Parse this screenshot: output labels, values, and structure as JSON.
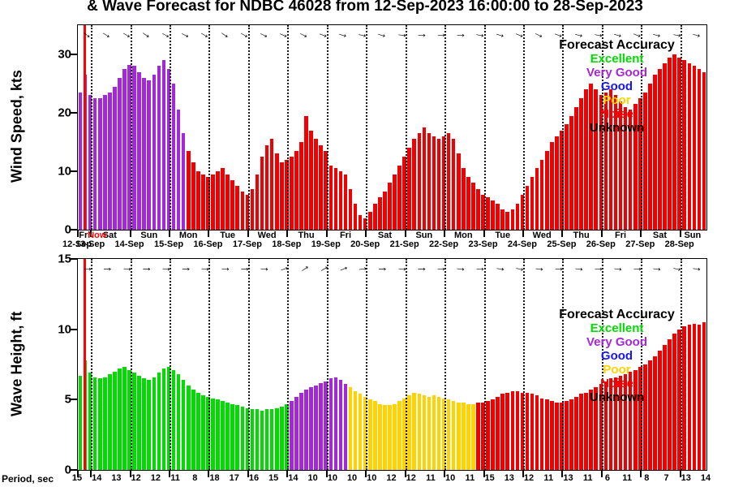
{
  "title": "& Wave Forecast for NDBC 46028 from 12-Sep-2023 16:00:00 to 28-Sep-2023",
  "now_label": "Now",
  "legend": {
    "title": "Forecast Accuracy",
    "items": [
      {
        "label": "Excellent",
        "color": "#00DC00"
      },
      {
        "label": "Very Good",
        "color": "#A428D8"
      },
      {
        "label": "Good",
        "color": "#1414FF"
      },
      {
        "label": "Poor",
        "color": "#FFD200"
      },
      {
        "label": "Noise",
        "color": "#F00000"
      },
      {
        "label": "Unknown",
        "color": "#000000"
      }
    ]
  },
  "xaxis": {
    "dates": [
      "12-Sep",
      "13-Sep",
      "14-Sep",
      "15-Sep",
      "16-Sep",
      "17-Sep",
      "18-Sep",
      "19-Sep",
      "20-Sep",
      "21-Sep",
      "22-Sep",
      "23-Sep",
      "24-Sep",
      "25-Sep",
      "26-Sep",
      "27-Sep",
      "28-Sep"
    ],
    "days": [
      "Fri",
      "Sat",
      "Sun",
      "Mon",
      "Tue",
      "Wed",
      "Thu",
      "Fri",
      "Sat",
      "Sun",
      "Mon",
      "Tue",
      "Wed",
      "Thu",
      "Fri",
      "Sat",
      "Sun"
    ]
  },
  "period": {
    "label": "Period, sec",
    "values": [
      15,
      14,
      13,
      12,
      12,
      11,
      8,
      18,
      17,
      16,
      15,
      14,
      10,
      10,
      10,
      10,
      12,
      12,
      11,
      10,
      11,
      15,
      13,
      12,
      11,
      13,
      11,
      6,
      11,
      8,
      7,
      13,
      14
    ]
  },
  "chart_data": [
    {
      "type": "bar",
      "title": "Wind Speed Forecast",
      "ylabel": "Wind Speed, kts",
      "ylim": [
        0,
        35
      ],
      "yticks": [
        0,
        10,
        20,
        30
      ],
      "x_span_hours": 384,
      "bar_hours": 3,
      "grid": "vertical-dotted-daily",
      "values": [
        23.5,
        26.5,
        23.0,
        22.5,
        22.5,
        23.0,
        23.5,
        24.5,
        26.0,
        27.5,
        28.2,
        28.0,
        27.0,
        26.0,
        25.5,
        26.5,
        28.0,
        29.0,
        27.5,
        25.0,
        20.5,
        16.5,
        13.5,
        11.5,
        10.0,
        9.5,
        9.0,
        9.5,
        10.0,
        10.5,
        9.5,
        8.5,
        7.5,
        6.5,
        6.0,
        7.0,
        9.5,
        12.5,
        14.5,
        15.5,
        13.0,
        11.5,
        12.0,
        12.5,
        13.5,
        15.0,
        19.5,
        17.0,
        15.5,
        14.5,
        13.5,
        11.0,
        10.5,
        10.0,
        9.5,
        7.0,
        4.5,
        2.5,
        2.0,
        3.0,
        4.5,
        5.5,
        6.5,
        8.0,
        9.5,
        11.0,
        12.5,
        14.0,
        15.5,
        16.5,
        17.5,
        16.5,
        16.0,
        15.5,
        16.0,
        16.5,
        15.5,
        13.0,
        10.5,
        9.0,
        8.0,
        7.0,
        6.0,
        5.5,
        5.0,
        4.5,
        3.5,
        3.0,
        3.5,
        4.5,
        6.0,
        7.5,
        9.0,
        10.5,
        12.0,
        13.5,
        15.0,
        16.0,
        17.0,
        18.0,
        19.5,
        21.0,
        22.5,
        24.0,
        25.0,
        24.0,
        23.0,
        23.5,
        24.0,
        23.0,
        22.0,
        21.0,
        20.5,
        21.5,
        22.5,
        23.5,
        25.0,
        26.5,
        27.5,
        28.5,
        29.5,
        30.0,
        29.5,
        29.0,
        28.5,
        28.0,
        27.5,
        27.0
      ],
      "accuracy_segments": [
        {
          "end_index": 21,
          "accuracy": "Very Good"
        },
        {
          "end_index": 127,
          "accuracy": "Noise"
        }
      ],
      "arrows_deg": [
        38,
        32,
        30,
        34,
        28,
        26,
        30,
        34,
        30,
        26,
        22,
        26,
        20,
        16,
        12,
        16,
        8,
        2,
        -4,
        2,
        10,
        16,
        22,
        26,
        20,
        14,
        10,
        16,
        20,
        14,
        10,
        14
      ]
    },
    {
      "type": "bar",
      "title": "Wave Height Forecast",
      "ylabel": "Wave Height, ft",
      "ylim": [
        0,
        15
      ],
      "yticks": [
        0,
        5,
        10,
        15
      ],
      "x_span_hours": 384,
      "bar_hours": 3,
      "grid": "vertical-dotted-daily",
      "values": [
        6.7,
        7.8,
        6.9,
        6.6,
        6.5,
        6.6,
        6.8,
        7.0,
        7.2,
        7.3,
        7.1,
        6.9,
        6.7,
        6.5,
        6.4,
        6.6,
        6.9,
        7.2,
        7.3,
        7.1,
        6.8,
        6.4,
        6.0,
        5.7,
        5.5,
        5.3,
        5.2,
        5.1,
        5.0,
        4.9,
        4.8,
        4.7,
        4.6,
        4.5,
        4.4,
        4.3,
        4.3,
        4.2,
        4.3,
        4.3,
        4.4,
        4.5,
        4.7,
        4.9,
        5.2,
        5.5,
        5.7,
        5.9,
        6.0,
        6.2,
        6.3,
        6.5,
        6.6,
        6.4,
        6.1,
        5.9,
        5.6,
        5.4,
        5.2,
        5.0,
        4.9,
        4.7,
        4.6,
        4.6,
        4.7,
        4.9,
        5.1,
        5.3,
        5.5,
        5.4,
        5.3,
        5.2,
        5.3,
        5.2,
        5.1,
        5.0,
        4.9,
        4.8,
        4.8,
        4.7,
        4.7,
        4.8,
        4.8,
        4.9,
        5.0,
        5.2,
        5.4,
        5.5,
        5.6,
        5.6,
        5.5,
        5.5,
        5.4,
        5.3,
        5.1,
        5.0,
        4.9,
        4.8,
        4.8,
        4.9,
        5.0,
        5.2,
        5.4,
        5.5,
        5.7,
        5.9,
        6.1,
        6.3,
        6.5,
        6.6,
        6.7,
        6.8,
        7.0,
        7.1,
        7.3,
        7.5,
        7.8,
        8.1,
        8.5,
        8.9,
        9.3,
        9.7,
        10.0,
        10.2,
        10.3,
        10.4,
        10.3,
        10.5
      ],
      "accuracy_segments": [
        {
          "end_index": 42,
          "accuracy": "Excellent"
        },
        {
          "end_index": 54,
          "accuracy": "Very Good"
        },
        {
          "end_index": 80,
          "accuracy": "Poor"
        },
        {
          "end_index": 127,
          "accuracy": "Noise"
        }
      ],
      "arrows_deg": [
        2,
        0,
        4,
        0,
        4,
        0,
        4,
        2,
        0,
        4,
        -18,
        -34,
        -30,
        -22,
        -8,
        0,
        4,
        0,
        2,
        6,
        2,
        8,
        12,
        6,
        2,
        6,
        2,
        6,
        2,
        6,
        12,
        8
      ]
    }
  ]
}
